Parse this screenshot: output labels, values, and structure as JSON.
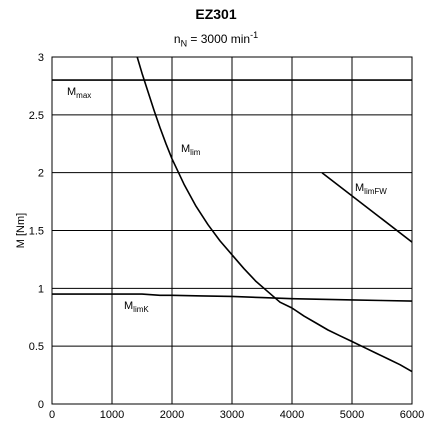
{
  "chart_data": {
    "type": "line",
    "title": "EZ301",
    "subtitle": {
      "main": "n",
      "sub": "N",
      "rest": " = 3000 min",
      "sup": "-1"
    },
    "xlabel": "",
    "ylabel": "M [Nm]",
    "xlim": [
      0,
      6000
    ],
    "ylim": [
      0,
      3
    ],
    "x_ticks": [
      0,
      1000,
      2000,
      3000,
      4000,
      5000,
      6000
    ],
    "y_ticks": [
      0,
      0.5,
      1,
      1.5,
      2,
      2.5,
      3
    ],
    "y_tick_labels": [
      "0",
      "0.5",
      "1",
      "1.5",
      "2",
      "2.5",
      "3"
    ],
    "grid": true,
    "series": [
      {
        "name": "Mmax",
        "label": {
          "main": "M",
          "sub": "max"
        },
        "label_at": [
          250,
          2.67
        ],
        "x": [
          0,
          6000
        ],
        "y": [
          2.8,
          2.8
        ]
      },
      {
        "name": "Mlim",
        "label": {
          "main": "M",
          "sub": "lim"
        },
        "label_at": [
          2150,
          2.18
        ],
        "x": [
          1420,
          1500,
          1600,
          1700,
          1800,
          1900,
          2000,
          2200,
          2400,
          2600,
          2800,
          3000,
          3200,
          3400,
          3600,
          3800,
          4000,
          4200,
          4400,
          4600,
          4800,
          5000,
          5200,
          5400,
          5600,
          5800,
          6000
        ],
        "y": [
          3.0,
          2.86,
          2.7,
          2.54,
          2.39,
          2.25,
          2.12,
          1.9,
          1.71,
          1.55,
          1.41,
          1.29,
          1.17,
          1.06,
          0.97,
          0.88,
          0.83,
          0.76,
          0.7,
          0.64,
          0.59,
          0.54,
          0.49,
          0.44,
          0.39,
          0.34,
          0.28
        ]
      },
      {
        "name": "MlimFW",
        "label": {
          "main": "M",
          "sub": "limFW"
        },
        "label_at": [
          5050,
          1.84
        ],
        "x": [
          4500,
          6000
        ],
        "y": [
          2.0,
          1.4
        ]
      },
      {
        "name": "MlimK",
        "label": {
          "main": "M",
          "sub": "limK"
        },
        "label_at": [
          1200,
          0.82
        ],
        "x": [
          0,
          500,
          1000,
          1500,
          1800,
          2000,
          2500,
          3000,
          3500,
          4000,
          4500,
          5000,
          5500,
          6000
        ],
        "y": [
          0.95,
          0.95,
          0.95,
          0.95,
          0.94,
          0.94,
          0.935,
          0.93,
          0.92,
          0.91,
          0.905,
          0.9,
          0.895,
          0.89
        ]
      }
    ]
  }
}
